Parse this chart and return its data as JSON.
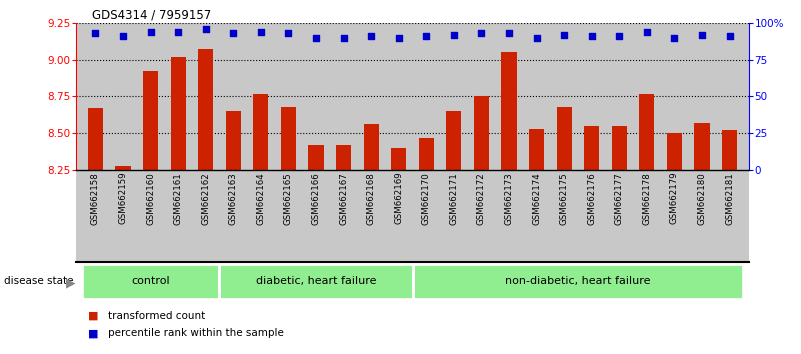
{
  "title": "GDS4314 / 7959157",
  "samples": [
    "GSM662158",
    "GSM662159",
    "GSM662160",
    "GSM662161",
    "GSM662162",
    "GSM662163",
    "GSM662164",
    "GSM662165",
    "GSM662166",
    "GSM662167",
    "GSM662168",
    "GSM662169",
    "GSM662170",
    "GSM662171",
    "GSM662172",
    "GSM662173",
    "GSM662174",
    "GSM662175",
    "GSM662176",
    "GSM662177",
    "GSM662178",
    "GSM662179",
    "GSM662180",
    "GSM662181"
  ],
  "bar_values": [
    8.67,
    8.28,
    8.92,
    9.02,
    9.07,
    8.65,
    8.77,
    8.68,
    8.42,
    8.42,
    8.56,
    8.4,
    8.47,
    8.65,
    8.75,
    9.05,
    8.53,
    8.68,
    8.55,
    8.55,
    8.77,
    8.5,
    8.57,
    8.52
  ],
  "percentile_values": [
    93,
    91,
    94,
    94,
    96,
    93,
    94,
    93,
    90,
    90,
    91,
    90,
    91,
    92,
    93,
    93,
    90,
    92,
    91,
    91,
    94,
    90,
    92,
    91
  ],
  "ylim_left": [
    8.25,
    9.25
  ],
  "ylim_right": [
    0,
    100
  ],
  "yticks_left": [
    8.25,
    8.5,
    8.75,
    9.0,
    9.25
  ],
  "yticks_right": [
    0,
    25,
    50,
    75,
    100
  ],
  "bar_color": "#cc2200",
  "dot_color": "#0000cc",
  "plot_bg_color": "#c8c8c8",
  "group_color": "#90ee90",
  "group_boundaries": [
    {
      "start": 0,
      "end": 4,
      "label": "control"
    },
    {
      "start": 5,
      "end": 11,
      "label": "diabetic, heart failure"
    },
    {
      "start": 12,
      "end": 23,
      "label": "non-diabetic, heart failure"
    }
  ],
  "hgrid_values": [
    8.5,
    8.75,
    9.0,
    9.25
  ],
  "disease_state_label": "disease state",
  "legend": [
    {
      "color": "#cc2200",
      "label": "transformed count"
    },
    {
      "color": "#0000cc",
      "label": "percentile rank within the sample"
    }
  ]
}
